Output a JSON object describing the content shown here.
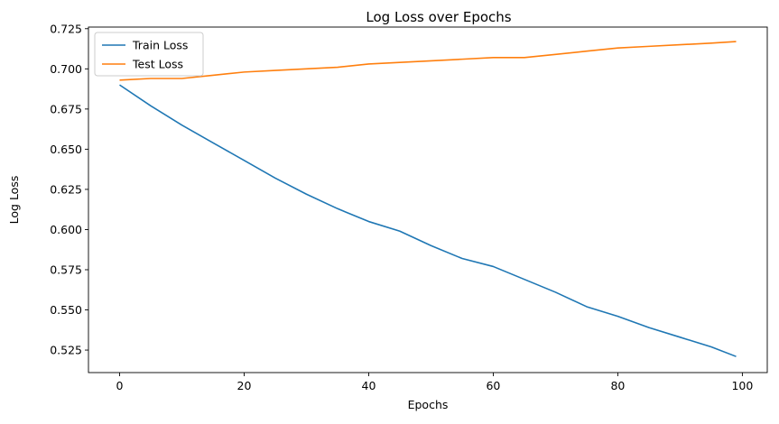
{
  "chart_data": {
    "type": "line",
    "title": "Log Loss over Epochs",
    "xlabel": "Epochs",
    "ylabel": "Log Loss",
    "xlim": [
      -5,
      104
    ],
    "ylim": [
      0.511,
      0.726
    ],
    "xticks": [
      0,
      20,
      40,
      60,
      80,
      100
    ],
    "xtick_labels": [
      "0",
      "20",
      "40",
      "60",
      "80",
      "100"
    ],
    "yticks": [
      0.525,
      0.55,
      0.575,
      0.6,
      0.625,
      0.65,
      0.675,
      0.7,
      0.725
    ],
    "ytick_labels": [
      "0.525",
      "0.550",
      "0.575",
      "0.600",
      "0.625",
      "0.650",
      "0.675",
      "0.700",
      "0.725"
    ],
    "grid": false,
    "legend_position": "top-left",
    "x": [
      0,
      5,
      10,
      15,
      20,
      25,
      30,
      35,
      40,
      45,
      50,
      55,
      60,
      65,
      70,
      75,
      80,
      85,
      90,
      95,
      99
    ],
    "series": [
      {
        "name": "Train Loss",
        "color": "#1f77b4",
        "values": [
          0.69,
          0.677,
          0.665,
          0.654,
          0.643,
          0.632,
          0.622,
          0.613,
          0.605,
          0.599,
          0.59,
          0.582,
          0.577,
          0.569,
          0.561,
          0.552,
          0.546,
          0.539,
          0.533,
          0.527,
          0.521
        ]
      },
      {
        "name": "Test Loss",
        "color": "#ff7f0e",
        "values": [
          0.693,
          0.694,
          0.694,
          0.696,
          0.698,
          0.699,
          0.7,
          0.701,
          0.703,
          0.704,
          0.705,
          0.706,
          0.707,
          0.707,
          0.709,
          0.711,
          0.713,
          0.714,
          0.715,
          0.716,
          0.717
        ]
      }
    ]
  }
}
